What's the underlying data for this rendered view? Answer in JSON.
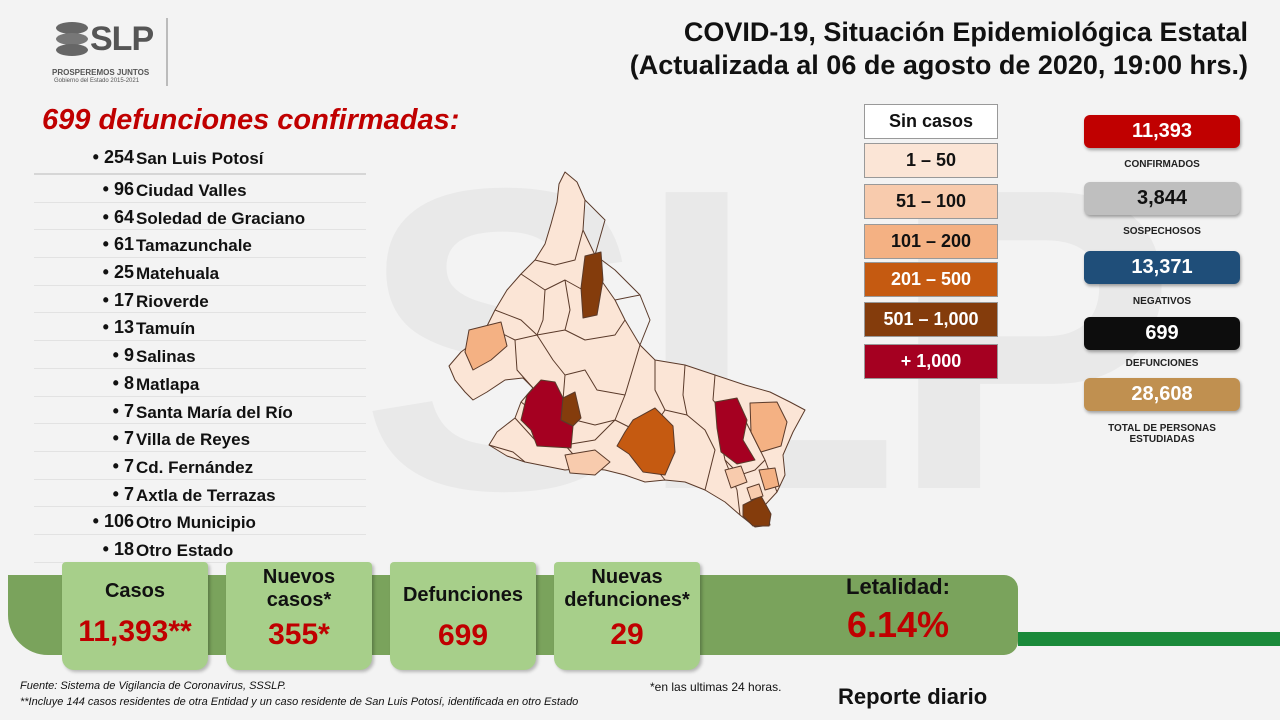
{
  "header": {
    "logo_text": "SLP",
    "logo_slogan": "PROSPEREMOS JUNTOS",
    "logo_government": "Gobierno del Estado 2015-2021",
    "title_line1": "COVID-19, Situación Epidemiológica Estatal",
    "title_line2": "(Actualizada al 06 de agosto de 2020, 19:00 hrs.)"
  },
  "deaths": {
    "heading": "699 defunciones confirmadas:",
    "municipalities": [
      {
        "count": "• 254",
        "name": "San Luis Potosí"
      },
      {
        "count": "• 96",
        "name": "Ciudad Valles"
      },
      {
        "count": "• 64",
        "name": "Soledad de Graciano"
      },
      {
        "count": "• 61",
        "name": "Tamazunchale"
      },
      {
        "count": "• 25",
        "name": "Matehuala"
      },
      {
        "count": "• 17",
        "name": "Rioverde"
      },
      {
        "count": "• 13",
        "name": "Tamuín"
      },
      {
        "count": "• 9",
        "name": "Salinas"
      },
      {
        "count": "• 8",
        "name": "Matlapa"
      },
      {
        "count": "• 7",
        "name": "Santa María del Río"
      },
      {
        "count": "• 7",
        "name": "Villa de Reyes"
      },
      {
        "count": "• 7",
        "name": "Cd. Fernández"
      },
      {
        "count": "• 7",
        "name": "Axtla de Terrazas"
      },
      {
        "count": "• 106",
        "name": "Otro Municipio"
      },
      {
        "count": "• 18",
        "name": "Otro Estado"
      }
    ]
  },
  "legend": [
    {
      "label": "Sin casos",
      "color": "#ffffff",
      "text_color": "#111111"
    },
    {
      "label": "1 – 50",
      "color": "#fbe5d6",
      "text_color": "#111111"
    },
    {
      "label": "51 – 100",
      "color": "#f8cbad",
      "text_color": "#111111"
    },
    {
      "label": "101 – 200",
      "color": "#f4b183",
      "text_color": "#111111"
    },
    {
      "label": "201 – 500",
      "color": "#c55a11",
      "text_color": "#ffffff"
    },
    {
      "label": "501 – 1,000",
      "color": "#843c0c",
      "text_color": "#ffffff"
    },
    {
      "label": "+ 1,000",
      "color": "#a50021",
      "text_color": "#ffffff"
    }
  ],
  "stats": [
    {
      "value": "11,393",
      "label": "CONFIRMADOS",
      "color": "#c00000",
      "text_color": "#ffffff"
    },
    {
      "value": "3,844",
      "label": "SOSPECHOSOS",
      "color": "#bfbfbf",
      "text_color": "#111111"
    },
    {
      "value": "13,371",
      "label": "NEGATIVOS",
      "color": "#1f4e79",
      "text_color": "#ffffff"
    },
    {
      "value": "699",
      "label": "DEFUNCIONES",
      "color": "#0d0d0d",
      "text_color": "#ffffff"
    },
    {
      "value": "28,608",
      "label": "TOTAL DE PERSONAS ESTUDIADAS",
      "color": "#c09050",
      "text_color": "#ffffff"
    }
  ],
  "summary": {
    "casos_label": "Casos",
    "casos_value": "11,393**",
    "nuevos_casos_label": "Nuevos casos*",
    "nuevos_casos_value": "355*",
    "defunciones_label": "Defunciones",
    "defunciones_value": "699",
    "nuevas_defunciones_label": "Nuevas defunciones*",
    "nuevas_defunciones_value": "29",
    "letalidad_label": "Letalidad:",
    "letalidad_value": "6.14%"
  },
  "footer": {
    "source": "Fuente: Sistema de Vigilancia  de Coronavirus, SSSLP.",
    "note": "**Incluye 144 casos residentes de otra Entidad  y un caso residente de San Luis Potosí, identificada  en otro Estado",
    "asterisk_note": "*en las ultimas 24 horas.",
    "report": "Reporte diario"
  }
}
